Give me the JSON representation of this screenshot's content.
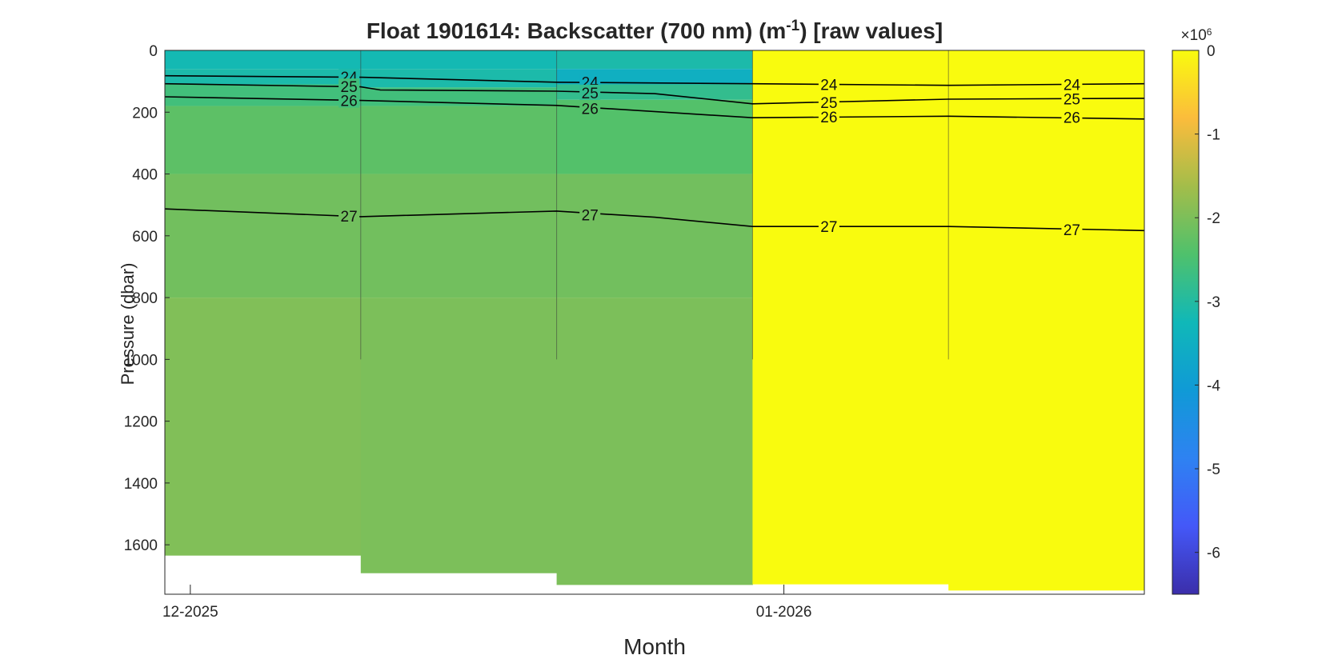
{
  "chart_data": {
    "type": "heatmap",
    "title": {
      "prefix": "Float  1901614:  Backscatter  (700  nm)  (m",
      "superscript": "-1",
      "suffix": ")  [raw  values]"
    },
    "xlabel": "Month",
    "ylabel": "Pressure (dbar)",
    "ylim": [
      0,
      1760
    ],
    "y_reversed": true,
    "y_ticks": [
      0,
      200,
      400,
      600,
      800,
      1000,
      1200,
      1400,
      1600
    ],
    "x_ticks": [
      {
        "label": "12-2025",
        "profile_position": 0.13
      },
      {
        "label": "01-2026",
        "profile_position": 3.16
      }
    ],
    "colorbar": {
      "multiplier_label": "×10",
      "multiplier_exponent": "6",
      "range": [
        -6.5,
        0
      ],
      "ticks": [
        0,
        -1,
        -2,
        -3,
        -4,
        -5,
        -6
      ],
      "colormap": [
        "#f9fb0e",
        "#fbbc3c",
        "#a3bd4a",
        "#4fc16c",
        "#10b8b8",
        "#109ad6",
        "#2e82f2",
        "#4458f8",
        "#3b2eaa"
      ]
    },
    "profiles": [
      {
        "index": 1,
        "max_pressure": 1635,
        "profile_depth_limit": 1000,
        "values": [
          {
            "from": 0,
            "to": 60,
            "value": -3.2
          },
          {
            "from": 60,
            "to": 110,
            "value": -3.1
          },
          {
            "from": 110,
            "to": 180,
            "value": -2.6
          },
          {
            "from": 180,
            "to": 400,
            "value": -2.3
          },
          {
            "from": 400,
            "to": 800,
            "value": -2.1
          },
          {
            "from": 800,
            "to": 1635,
            "value": -1.95
          }
        ]
      },
      {
        "index": 2,
        "max_pressure": 1692,
        "profile_depth_limit": 1000,
        "values": [
          {
            "from": 0,
            "to": 60,
            "value": -3.2
          },
          {
            "from": 60,
            "to": 120,
            "value": -3.1
          },
          {
            "from": 120,
            "to": 180,
            "value": -2.6
          },
          {
            "from": 180,
            "to": 400,
            "value": -2.3
          },
          {
            "from": 400,
            "to": 800,
            "value": -2.1
          },
          {
            "from": 800,
            "to": 1692,
            "value": -2.0
          }
        ]
      },
      {
        "index": 3,
        "max_pressure": 1730,
        "profile_depth_limit": 1000,
        "values": [
          {
            "from": 0,
            "to": 60,
            "value": -3.1
          },
          {
            "from": 60,
            "to": 110,
            "value": -3.5
          },
          {
            "from": 110,
            "to": 160,
            "value": -2.8
          },
          {
            "from": 160,
            "to": 400,
            "value": -2.4
          },
          {
            "from": 400,
            "to": 800,
            "value": -2.1
          },
          {
            "from": 800,
            "to": 1730,
            "value": -2.0
          }
        ]
      },
      {
        "index": 4,
        "max_pressure": 1728,
        "profile_depth_limit": 1000,
        "values": [
          {
            "from": 0,
            "to": 1728,
            "value": 0
          }
        ]
      },
      {
        "index": 5,
        "max_pressure": 1748,
        "profile_depth_limit": 1000,
        "values": [
          {
            "from": 0,
            "to": 1748,
            "value": 0
          }
        ]
      }
    ],
    "contours": [
      {
        "level": "24",
        "points": [
          [
            0,
            82
          ],
          [
            1,
            87
          ],
          [
            2,
            103
          ],
          [
            3,
            108
          ],
          [
            4,
            113
          ],
          [
            5,
            108
          ]
        ],
        "labels": [
          [
            0.94,
            85
          ],
          [
            2.17,
            102
          ],
          [
            3.39,
            110
          ],
          [
            4.63,
            110
          ]
        ]
      },
      {
        "level": "25",
        "points": [
          [
            0,
            108
          ],
          [
            1,
            118
          ],
          [
            1.1,
            128
          ],
          [
            2,
            132
          ],
          [
            2.5,
            140
          ],
          [
            3,
            173
          ],
          [
            4,
            158
          ],
          [
            5,
            155
          ]
        ],
        "labels": [
          [
            0.94,
            117
          ],
          [
            2.17,
            137
          ],
          [
            3.39,
            168
          ],
          [
            4.63,
            156
          ]
        ]
      },
      {
        "level": "26",
        "points": [
          [
            0,
            150
          ],
          [
            1,
            162
          ],
          [
            2,
            178
          ],
          [
            3,
            218
          ],
          [
            4,
            213
          ],
          [
            5,
            222
          ]
        ],
        "labels": [
          [
            0.94,
            162
          ],
          [
            2.17,
            188
          ],
          [
            3.39,
            215
          ],
          [
            4.63,
            216
          ]
        ]
      },
      {
        "level": "27",
        "points": [
          [
            0,
            513
          ],
          [
            1,
            538
          ],
          [
            2,
            520
          ],
          [
            2.5,
            540
          ],
          [
            3,
            570
          ],
          [
            4,
            570
          ],
          [
            5,
            583
          ]
        ],
        "labels": [
          [
            0.94,
            536
          ],
          [
            2.17,
            532
          ],
          [
            3.39,
            570
          ],
          [
            4.63,
            580
          ]
        ]
      }
    ],
    "grid": false,
    "legend": "colorbar-right"
  }
}
